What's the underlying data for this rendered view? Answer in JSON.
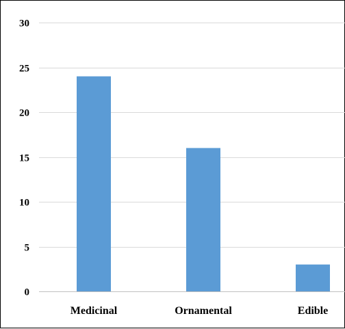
{
  "chart_data": {
    "type": "bar",
    "title": "",
    "xlabel": "",
    "ylabel": "",
    "categories": [
      "Medicinal",
      "Ornamental",
      "Edible"
    ],
    "values": [
      24,
      16,
      3
    ],
    "ylim": [
      0,
      30
    ],
    "yticks": [
      0,
      5,
      10,
      15,
      20,
      25,
      30
    ],
    "ytick_labels": [
      "0",
      "5",
      "10",
      "15",
      "20",
      "25",
      "30"
    ],
    "grid": true,
    "legend": "none",
    "bar_color": "#5B9BD5",
    "grid_color": "#D9D9D9",
    "axis_color": "#BFBFBF"
  }
}
